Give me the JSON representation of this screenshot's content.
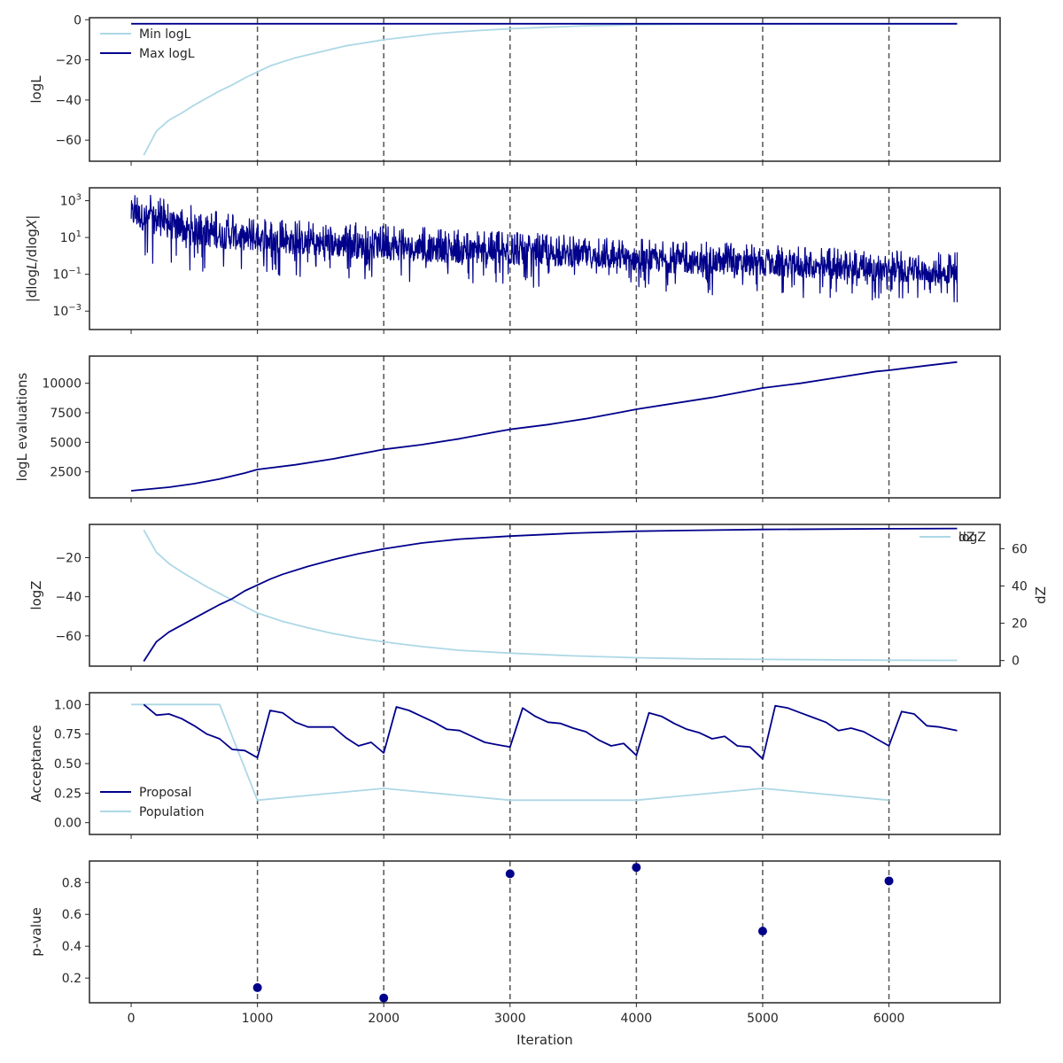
{
  "figure": {
    "colors": {
      "dark": "#00008b",
      "light": "#add8e6",
      "grid": "#555555",
      "axis": "#262626"
    },
    "xlabel": "Iteration",
    "xticks": [
      "0",
      "1000",
      "2000",
      "3000",
      "4000",
      "5000",
      "6000"
    ],
    "vlines": [
      1000,
      2000,
      3000,
      4000,
      5000,
      6000
    ]
  },
  "chart_data": [
    {
      "id": "loglike",
      "type": "line",
      "ylabel": "logL",
      "xlim": [
        -330,
        6880
      ],
      "ylim": [
        -70.5,
        1.0
      ],
      "yticks": [
        0,
        -20,
        -40,
        -60
      ],
      "ytick_labels": [
        "0",
        "−20",
        "−40",
        "−60"
      ],
      "legend": {
        "position": "top-left",
        "items": [
          {
            "label": "Min logL",
            "color": "light"
          },
          {
            "label": "Max logL",
            "color": "dark"
          }
        ]
      },
      "series": [
        {
          "name": "Min logL",
          "color": "light",
          "x": [
            100,
            200,
            300,
            400,
            500,
            600,
            700,
            800,
            900,
            1000,
            1100,
            1200,
            1300,
            1400,
            1500,
            1600,
            1700,
            1800,
            1900,
            2000,
            2200,
            2400,
            2600,
            2800,
            3000,
            3200,
            3400,
            3600,
            3800,
            4000,
            4500,
            5000,
            5500,
            6000,
            6540
          ],
          "y": [
            -67.5,
            -55.5,
            -50,
            -46.5,
            -42.5,
            -39,
            -35.5,
            -32.5,
            -29,
            -26,
            -23,
            -21,
            -19,
            -17.5,
            -16,
            -14.5,
            -13,
            -12,
            -11,
            -10,
            -8.5,
            -7,
            -6,
            -5.2,
            -4.5,
            -4,
            -3.5,
            -3,
            -2.8,
            -2.5,
            -2.2,
            -2.1,
            -2.0,
            -2.0,
            -2.0
          ]
        },
        {
          "name": "Max logL",
          "color": "dark",
          "x": [
            0,
            6540
          ],
          "y": [
            -2.0,
            -2.0
          ]
        }
      ]
    },
    {
      "id": "dlogl",
      "type": "line",
      "ylabel": "|dlogL/dlogX|",
      "yscale": "log",
      "xlim": [
        -330,
        6880
      ],
      "ylim_log10": [
        -4.0,
        3.7
      ],
      "yticks_log10": [
        3,
        1,
        -1,
        -3
      ],
      "ytick_labels": [
        "10^3",
        "10^1",
        "10^-1",
        "10^-3"
      ],
      "series": [
        {
          "name": "",
          "color": "dark",
          "envelope_x": [
            0,
            500,
            1000,
            1500,
            2000,
            2500,
            3000,
            3500,
            4000,
            4500,
            5000,
            5500,
            6000,
            6540
          ],
          "upper_log10": [
            3.6,
            2.7,
            2.1,
            1.9,
            1.8,
            1.5,
            1.35,
            1.1,
            0.95,
            0.8,
            0.6,
            0.45,
            0.3,
            0.2
          ],
          "lower_log10": [
            -0.95,
            -1.0,
            -1.1,
            -1.2,
            -1.35,
            -1.5,
            -1.65,
            -1.8,
            -1.95,
            -2.1,
            -2.25,
            -2.35,
            -2.45,
            -2.5
          ],
          "center_log10": [
            2.3,
            1.3,
            0.9,
            0.65,
            0.5,
            0.3,
            0.15,
            0.0,
            -0.2,
            -0.35,
            -0.5,
            -0.65,
            -0.8,
            -0.9
          ]
        }
      ]
    },
    {
      "id": "evals",
      "type": "line",
      "ylabel": "logL evaluations",
      "xlim": [
        -330,
        6880
      ],
      "ylim": [
        300,
        12300
      ],
      "yticks": [
        2500,
        5000,
        7500,
        10000
      ],
      "ytick_labels": [
        "2500",
        "5000",
        "7500",
        "10000"
      ],
      "series": [
        {
          "name": "",
          "color": "dark",
          "x": [
            0,
            300,
            500,
            700,
            900,
            1000,
            1300,
            1600,
            1900,
            2000,
            2300,
            2600,
            2900,
            3000,
            3300,
            3600,
            3900,
            4000,
            4300,
            4600,
            4900,
            5000,
            5300,
            5600,
            5900,
            6000,
            6300,
            6540
          ],
          "y": [
            900,
            1200,
            1500,
            1900,
            2400,
            2700,
            3100,
            3600,
            4200,
            4400,
            4800,
            5300,
            5900,
            6100,
            6500,
            7000,
            7600,
            7800,
            8300,
            8800,
            9400,
            9600,
            10000,
            10500,
            11000,
            11100,
            11500,
            11800
          ]
        }
      ]
    },
    {
      "id": "logz",
      "type": "line",
      "ylabel": "logZ",
      "y2label": "dZ",
      "xlim": [
        -330,
        6880
      ],
      "ylim": [
        -75.5,
        -3.0
      ],
      "yticks": [
        -20,
        -40,
        -60
      ],
      "ytick_labels": [
        "−20",
        "−40",
        "−60"
      ],
      "y2lim": [
        -3.0,
        73.0
      ],
      "y2ticks": [
        0,
        20,
        40,
        60
      ],
      "y2tick_labels": [
        "0",
        "20",
        "40",
        "60"
      ],
      "legend": {
        "position": "top-right",
        "items": [
          {
            "label": "logZ",
            "color": "dark"
          },
          {
            "label": "dZ",
            "color": "light"
          }
        ]
      },
      "series": [
        {
          "name": "logZ",
          "color": "dark",
          "axis": "left",
          "x": [
            100,
            200,
            300,
            400,
            500,
            600,
            700,
            800,
            900,
            1000,
            1100,
            1200,
            1400,
            1600,
            1800,
            2000,
            2300,
            2600,
            3000,
            3500,
            4000,
            4500,
            5000,
            5500,
            6000,
            6540
          ],
          "y": [
            -73,
            -63,
            -58,
            -54.5,
            -51,
            -47.5,
            -44,
            -41,
            -37,
            -34,
            -31,
            -28.5,
            -24.5,
            -21,
            -18,
            -15.5,
            -12.5,
            -10.5,
            -9,
            -7.5,
            -6.5,
            -6,
            -5.6,
            -5.4,
            -5.2,
            -5.1
          ]
        },
        {
          "name": "dZ",
          "color": "light",
          "axis": "right",
          "x": [
            100,
            200,
            300,
            400,
            500,
            600,
            700,
            800,
            900,
            1000,
            1200,
            1400,
            1600,
            1800,
            2000,
            2300,
            2600,
            3000,
            3500,
            4000,
            4500,
            5000,
            5500,
            6000,
            6540
          ],
          "y": [
            70,
            58,
            52,
            47.5,
            43.5,
            39.5,
            36,
            32.5,
            29,
            25.5,
            21,
            17.5,
            14.5,
            12,
            10,
            7.5,
            5.5,
            4,
            2.5,
            1.5,
            0.9,
            0.6,
            0.4,
            0.2,
            0.1
          ]
        }
      ]
    },
    {
      "id": "acceptance",
      "type": "line",
      "ylabel": "Acceptance",
      "xlim": [
        -330,
        6880
      ],
      "ylim": [
        -0.1,
        1.1
      ],
      "yticks": [
        1.0,
        0.75,
        0.5,
        0.25,
        0.0
      ],
      "ytick_labels": [
        "1.00",
        "0.75",
        "0.50",
        "0.25",
        "0.00"
      ],
      "legend": {
        "position": "bottom-left",
        "items": [
          {
            "label": "Proposal",
            "color": "dark"
          },
          {
            "label": "Population",
            "color": "light"
          }
        ]
      },
      "series": [
        {
          "name": "Proposal",
          "color": "dark",
          "x": [
            100,
            200,
            300,
            400,
            500,
            600,
            700,
            800,
            900,
            1000,
            1100,
            1200,
            1300,
            1400,
            1500,
            1600,
            1700,
            1800,
            1900,
            2000,
            2100,
            2200,
            2300,
            2400,
            2500,
            2600,
            2700,
            2800,
            2900,
            3000,
            3100,
            3200,
            3300,
            3400,
            3500,
            3600,
            3700,
            3800,
            3900,
            4000,
            4100,
            4200,
            4300,
            4400,
            4500,
            4600,
            4700,
            4800,
            4900,
            5000,
            5100,
            5200,
            5300,
            5400,
            5500,
            5600,
            5700,
            5800,
            5900,
            6000,
            6100,
            6200,
            6300,
            6400,
            6540
          ],
          "y": [
            1.0,
            0.91,
            0.92,
            0.88,
            0.82,
            0.75,
            0.71,
            0.62,
            0.61,
            0.55,
            0.95,
            0.93,
            0.85,
            0.81,
            0.81,
            0.81,
            0.72,
            0.65,
            0.68,
            0.59,
            0.98,
            0.95,
            0.9,
            0.85,
            0.79,
            0.78,
            0.73,
            0.68,
            0.66,
            0.64,
            0.97,
            0.9,
            0.85,
            0.84,
            0.8,
            0.77,
            0.7,
            0.65,
            0.67,
            0.57,
            0.93,
            0.9,
            0.84,
            0.79,
            0.76,
            0.71,
            0.73,
            0.65,
            0.64,
            0.54,
            0.99,
            0.97,
            0.93,
            0.89,
            0.85,
            0.78,
            0.8,
            0.77,
            0.71,
            0.65,
            0.94,
            0.92,
            0.82,
            0.81,
            0.78
          ]
        },
        {
          "name": "Population",
          "color": "light",
          "x": [
            0,
            700,
            1000,
            2000,
            3000,
            4000,
            5000,
            6000
          ],
          "y": [
            1.0,
            1.0,
            0.19,
            0.29,
            0.19,
            0.19,
            0.29,
            0.19
          ]
        }
      ]
    },
    {
      "id": "pvalue",
      "type": "scatter",
      "ylabel": "p-value",
      "xlim": [
        -330,
        6880
      ],
      "ylim": [
        0.045,
        0.935
      ],
      "yticks": [
        0.8,
        0.6,
        0.4,
        0.2
      ],
      "ytick_labels": [
        "0.8",
        "0.6",
        "0.4",
        "0.2"
      ],
      "series": [
        {
          "name": "",
          "color": "dark",
          "x": [
            1000,
            2000,
            3000,
            4000,
            5000,
            6000
          ],
          "y": [
            0.14,
            0.075,
            0.855,
            0.895,
            0.495,
            0.81
          ]
        }
      ]
    }
  ]
}
